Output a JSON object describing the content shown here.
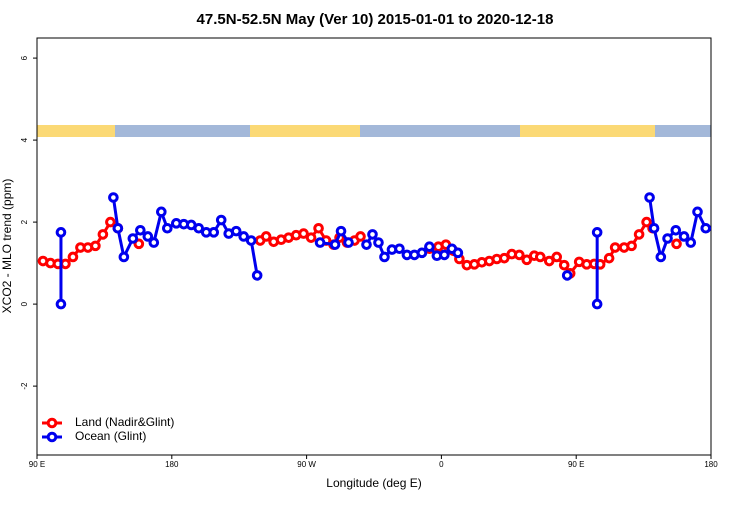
{
  "chart_data": {
    "type": "line",
    "title": "47.5N-52.5N May (Ver 10)   2015-01-01 to 2020-12-18",
    "x_label": "Longitude (deg E)",
    "y_label": "XCO2 - MLO trend (ppm)",
    "xlim": [
      90,
      540
    ],
    "xticks": [
      {
        "value": 90,
        "label": "90 E"
      },
      180,
      {
        "value": 270,
        "label": "90 W"
      },
      {
        "value": 360,
        "label": "0"
      },
      {
        "value": 450,
        "label": "90 E"
      },
      {
        "value": 540,
        "label": "180"
      }
    ],
    "ylim": [
      -3.68,
      6.49
    ],
    "yticks": [
      -2,
      0,
      2,
      4,
      6
    ],
    "legend": "bottom-left",
    "series": [
      {
        "name": "Land (Nadir&Glint)",
        "color": "#ff0000",
        "x": [
          94,
          99,
          104,
          109,
          114,
          119,
          124,
          129,
          134,
          139,
          144,
          null,
          158,
          null,
          239,
          243,
          248,
          253,
          258,
          263,
          268,
          273,
          278,
          283,
          288,
          292,
          297,
          302,
          306,
          null,
          352,
          358,
          363,
          368,
          372,
          377,
          382,
          387,
          392,
          397,
          402,
          407,
          412,
          417,
          422,
          426,
          432,
          437,
          442,
          446,
          452,
          457,
          462,
          466,
          472,
          476,
          482,
          487,
          492,
          497,
          501,
          null,
          517
        ],
        "values": [
          1.05,
          1.0,
          0.98,
          0.98,
          1.15,
          1.38,
          1.38,
          1.42,
          1.7,
          2.0,
          1.85,
          null,
          1.47,
          null,
          1.55,
          1.65,
          1.52,
          1.57,
          1.62,
          1.68,
          1.72,
          1.62,
          1.85,
          1.55,
          1.45,
          1.62,
          1.5,
          1.55,
          1.65,
          null,
          1.35,
          1.4,
          1.45,
          1.3,
          1.1,
          0.95,
          0.97,
          1.02,
          1.05,
          1.1,
          1.12,
          1.22,
          1.2,
          1.08,
          1.18,
          1.15,
          1.05,
          1.15,
          0.95,
          0.75,
          1.03,
          0.97,
          0.98,
          0.97,
          1.12,
          1.38,
          1.38,
          1.42,
          1.7,
          2.0,
          1.85,
          null,
          1.47
        ]
      },
      {
        "name": "Ocean (Glint)",
        "color": "#0000ee",
        "x": [
          106,
          106,
          null,
          141,
          144,
          148,
          154,
          159,
          164,
          168,
          173,
          177,
          183,
          188,
          193,
          198,
          203,
          208,
          213,
          218,
          223,
          228,
          233,
          237,
          null,
          279,
          289,
          293,
          298,
          null,
          310,
          314,
          318,
          322,
          327,
          332,
          337,
          342,
          347,
          352,
          357,
          362,
          367,
          371,
          null,
          444,
          null,
          464,
          464,
          null,
          499,
          502,
          506.5,
          511,
          516.5,
          522,
          526.5,
          531,
          536.5
        ],
        "values": [
          1.75,
          0.0,
          null,
          2.6,
          1.85,
          1.15,
          1.6,
          1.8,
          1.65,
          1.5,
          2.25,
          1.85,
          1.97,
          1.95,
          1.93,
          1.85,
          1.75,
          1.75,
          2.05,
          1.72,
          1.78,
          1.65,
          1.55,
          0.7,
          null,
          1.5,
          1.45,
          1.78,
          1.5,
          null,
          1.45,
          1.7,
          1.5,
          1.15,
          1.33,
          1.35,
          1.2,
          1.2,
          1.25,
          1.4,
          1.18,
          1.2,
          1.35,
          1.25,
          null,
          0.7,
          null,
          1.75,
          0.0,
          null,
          2.6,
          1.85,
          1.15,
          1.6,
          1.8,
          1.65,
          1.5,
          2.25,
          1.85
        ]
      }
    ]
  }
}
